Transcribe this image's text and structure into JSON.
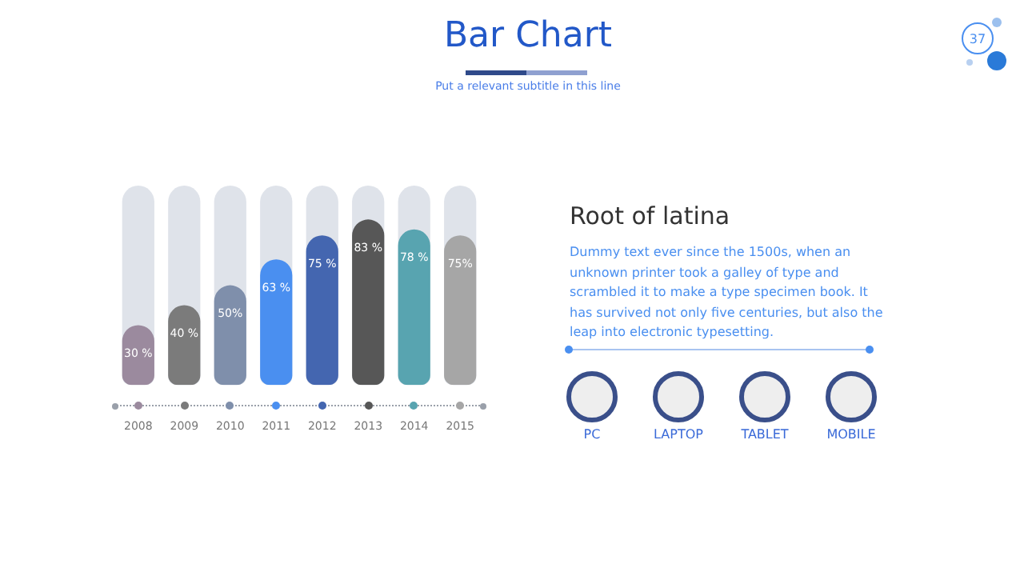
{
  "chart_data": [
    {
      "type": "bar",
      "title": "Bar Chart",
      "subtitle": "Put a relevant subtitle in this line",
      "categories": [
        "2008",
        "2009",
        "2010",
        "2011",
        "2012",
        "2013",
        "2014",
        "2015"
      ],
      "values": [
        30,
        40,
        50,
        63,
        75,
        83,
        78,
        75
      ],
      "colors": [
        "#9b8a9e",
        "#7b7b7b",
        "#7f8fab",
        "#4a8ff0",
        "#4466b0",
        "#575757",
        "#58a4b0",
        "#a6a6a6"
      ],
      "value_labels": [
        "30 %",
        "40 %",
        "50%",
        "63 %",
        "75 %",
        "83 %",
        "78 %",
        "75%"
      ],
      "ylim": [
        0,
        100
      ],
      "tick_labels": "x",
      "grid": false,
      "legend": false,
      "annotations": [
        "37"
      ]
    },
    {
      "type": "other",
      "title": "Root of latina",
      "annotations": [
        "Dummy text ever since the 1500s, when an unknown printer took a galley of type and scrambled it to make a type specimen book. It has survived not only five centuries, but also the leap into electronic typesetting.",
        "PC",
        "LAPTOP",
        "TABLET",
        "MOBILE"
      ]
    }
  ]
}
